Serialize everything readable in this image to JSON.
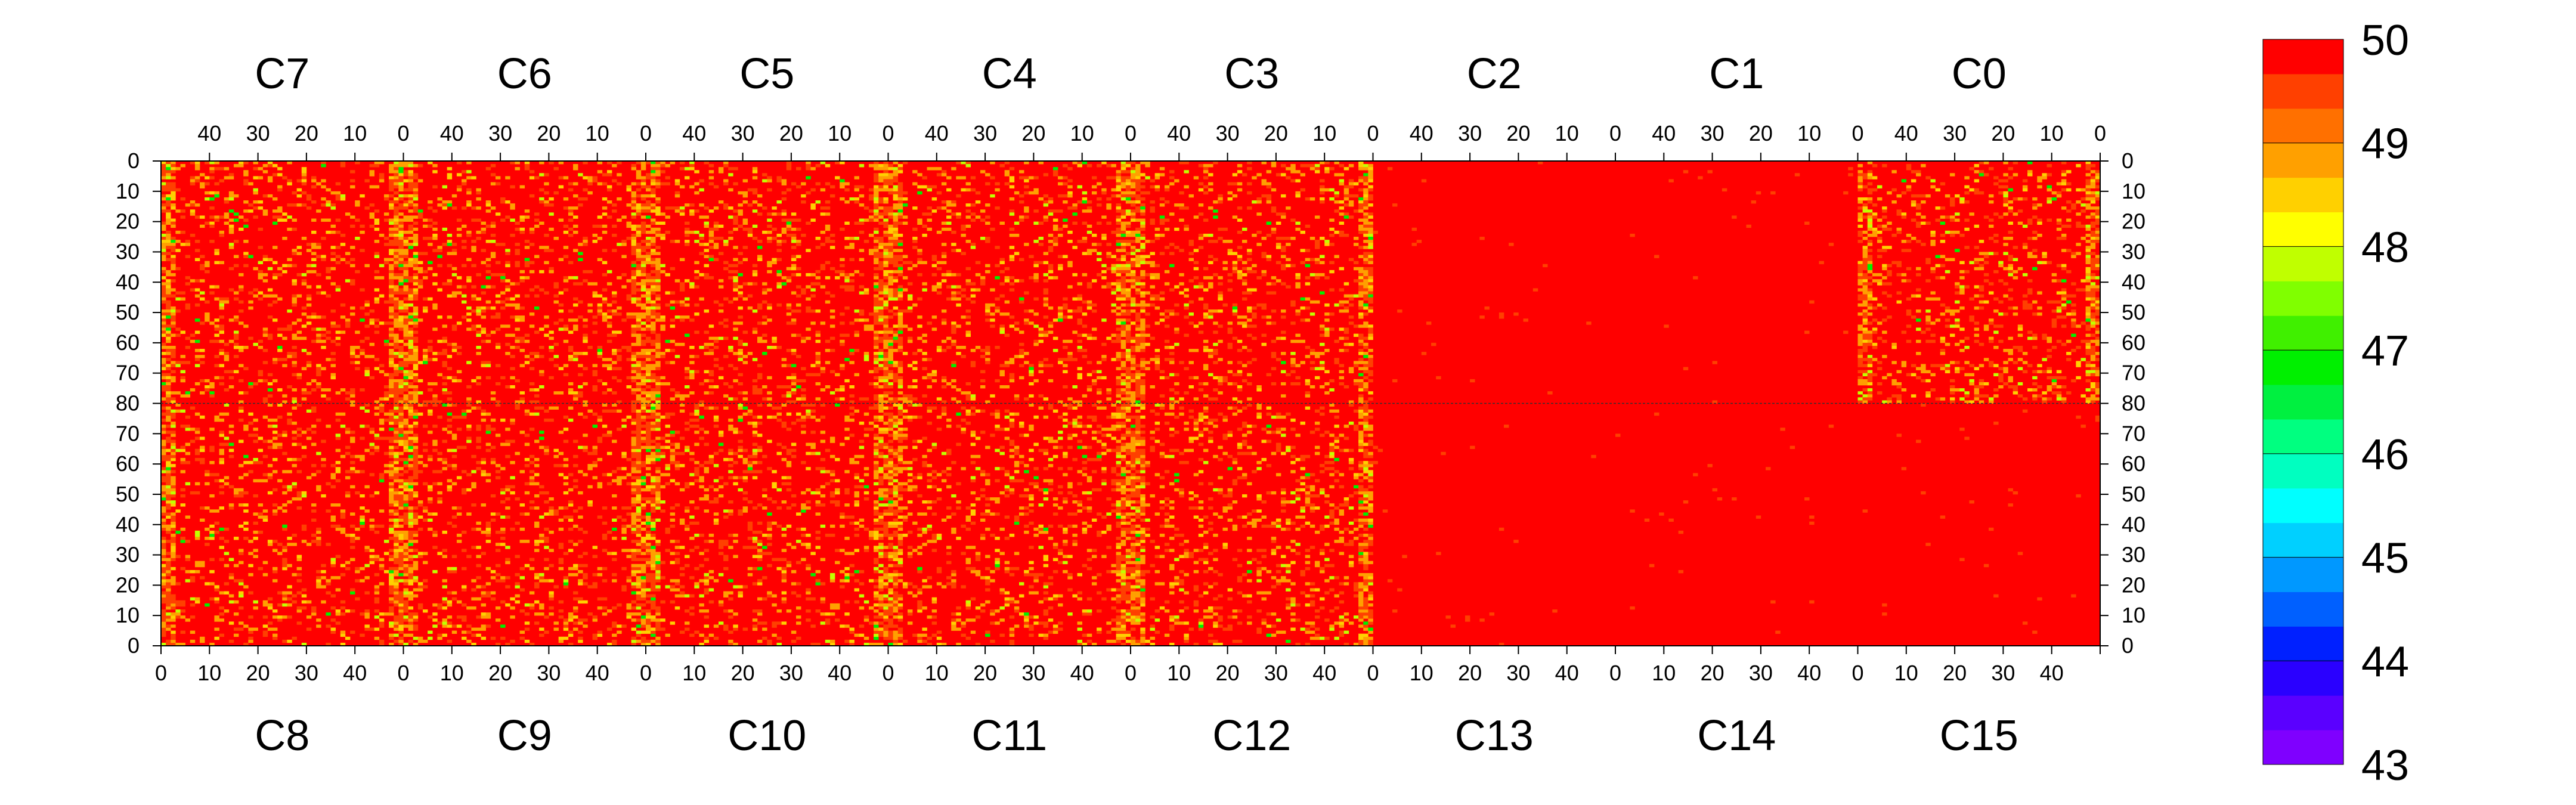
{
  "chart_data": {
    "type": "heatmap",
    "title": "",
    "xlabel": "",
    "ylabel": "",
    "top_groups": [
      "C7",
      "C6",
      "C5",
      "C4",
      "C3",
      "C2",
      "C1",
      "C0"
    ],
    "bottom_groups": [
      "C8",
      "C9",
      "C10",
      "C11",
      "C12",
      "C13",
      "C14",
      "C15"
    ],
    "columns_per_group": 50,
    "rows_per_half": 80,
    "top_x_ticks": [
      40,
      30,
      20,
      10,
      0
    ],
    "bottom_x_ticks": [
      0,
      10,
      20,
      30,
      40
    ],
    "y_ticks_top_half": [
      0,
      10,
      20,
      30,
      40,
      50,
      60,
      70,
      80
    ],
    "y_ticks_bottom_half": [
      70,
      60,
      50,
      40,
      30,
      20,
      10,
      0
    ],
    "zlim": [
      43,
      50
    ],
    "color_scale_labels": [
      "50",
      "49",
      "48",
      "47",
      "46",
      "45",
      "44",
      "43"
    ],
    "palette": [
      "#7f00ff",
      "#5a00ff",
      "#2a00ff",
      "#0020ff",
      "#0060ff",
      "#0098ff",
      "#00d0ff",
      "#00ffff",
      "#00ffc0",
      "#00ff80",
      "#00f040",
      "#00f000",
      "#40f000",
      "#80ff00",
      "#c0ff00",
      "#ffff00",
      "#ffd000",
      "#ffa000",
      "#ff7000",
      "#ff4000",
      "#ff0000"
    ],
    "background_value": 50,
    "cell_value_distribution": {
      "50": 0.8,
      "49.5": 0.09,
      "49": 0.07,
      "48.5": 0.025,
      "48": 0.01,
      "47": 0.005
    },
    "grid": false,
    "legend_position": "right"
  }
}
